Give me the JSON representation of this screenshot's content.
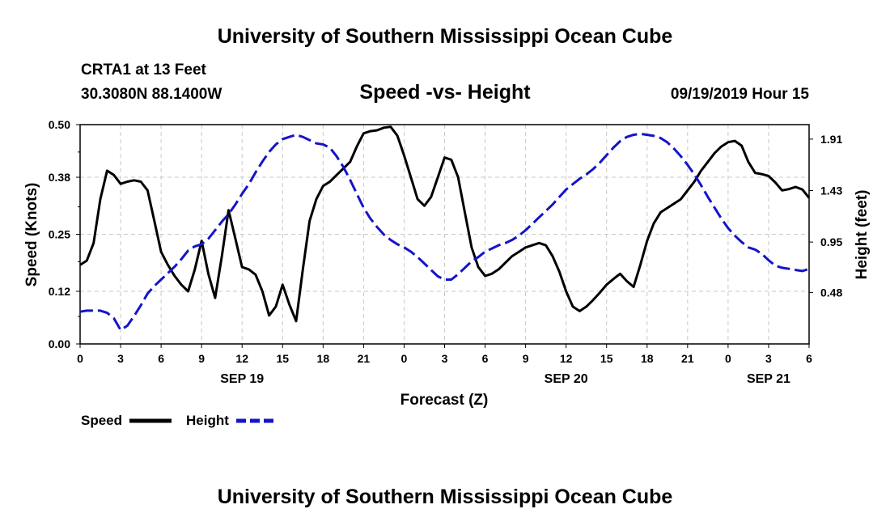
{
  "header": {
    "title": "University of Southern Mississippi Ocean Cube",
    "station": "CRTA1 at 13 Feet",
    "coords": "30.3080N 88.1400W",
    "subtitle": "Speed -vs- Height",
    "datetime": "09/19/2019 Hour 15"
  },
  "footer": {
    "title": "University of Southern Mississippi Ocean Cube"
  },
  "colors": {
    "speed": "#000000",
    "height": "#1414c8",
    "grid": "#c8c8c8"
  },
  "chart_data": {
    "type": "line",
    "title": "Speed -vs- Height",
    "xlabel": "Forecast (Z)",
    "ylabel_left": "Speed (Knots)",
    "ylabel_right": "Height (feet)",
    "x_range_hours": [
      0,
      54
    ],
    "x_ticks": [
      {
        "h": 0,
        "label": "0"
      },
      {
        "h": 3,
        "label": "3"
      },
      {
        "h": 6,
        "label": "6"
      },
      {
        "h": 9,
        "label": "9"
      },
      {
        "h": 12,
        "label": "12"
      },
      {
        "h": 15,
        "label": "15"
      },
      {
        "h": 18,
        "label": "18"
      },
      {
        "h": 21,
        "label": "21"
      },
      {
        "h": 24,
        "label": "0"
      },
      {
        "h": 27,
        "label": "3"
      },
      {
        "h": 30,
        "label": "6"
      },
      {
        "h": 33,
        "label": "9"
      },
      {
        "h": 36,
        "label": "12"
      },
      {
        "h": 39,
        "label": "15"
      },
      {
        "h": 42,
        "label": "18"
      },
      {
        "h": 45,
        "label": "21"
      },
      {
        "h": 48,
        "label": "0"
      },
      {
        "h": 51,
        "label": "3"
      },
      {
        "h": 54,
        "label": "6"
      }
    ],
    "date_labels": [
      {
        "h": 12,
        "label": "SEP 19"
      },
      {
        "h": 36,
        "label": "SEP 20"
      },
      {
        "h": 51,
        "label": "SEP 21"
      }
    ],
    "y_left": {
      "min": 0,
      "max": 0.5,
      "ticks": [
        "0.00",
        "0.12",
        "0.25",
        "0.38",
        "0.50"
      ]
    },
    "y_right": {
      "min": 0.0,
      "max": 2.045,
      "ticks": [
        "0.48",
        "0.95",
        "1.43",
        "1.91"
      ]
    },
    "series": [
      {
        "name": "Speed",
        "axis": "left",
        "style": "solid",
        "x": [
          0,
          0.5,
          1,
          1.5,
          2,
          2.5,
          3,
          3.5,
          4,
          4.5,
          5,
          5.5,
          6,
          6.5,
          7,
          7.5,
          8,
          8.5,
          9,
          9.5,
          10,
          10.5,
          11,
          11.5,
          12,
          12.5,
          13,
          13.5,
          14,
          14.5,
          15,
          15.5,
          16,
          16.5,
          17,
          17.5,
          18,
          18.5,
          19,
          19.5,
          20,
          20.5,
          21,
          21.5,
          22,
          22.5,
          23,
          23.5,
          24,
          24.5,
          25,
          25.5,
          26,
          26.5,
          27,
          27.5,
          28,
          28.5,
          29,
          29.5,
          30,
          30.5,
          31,
          31.5,
          32,
          32.5,
          33,
          33.5,
          34,
          34.5,
          35,
          35.5,
          36,
          36.5,
          37,
          37.5,
          38,
          38.5,
          39,
          39.5,
          40,
          40.5,
          41,
          41.5,
          42,
          42.5,
          43,
          43.5,
          44,
          44.5,
          45,
          45.5,
          46,
          46.5,
          47,
          47.5,
          48,
          48.5,
          49,
          49.5,
          50,
          50.5,
          51,
          51.5,
          52,
          52.5,
          53,
          53.5,
          54
        ],
        "values": [
          0.18,
          0.19,
          0.23,
          0.33,
          0.395,
          0.385,
          0.365,
          0.37,
          0.373,
          0.37,
          0.35,
          0.28,
          0.21,
          0.18,
          0.155,
          0.135,
          0.12,
          0.17,
          0.235,
          0.16,
          0.105,
          0.2,
          0.305,
          0.24,
          0.175,
          0.17,
          0.158,
          0.12,
          0.065,
          0.085,
          0.135,
          0.09,
          0.052,
          0.17,
          0.28,
          0.33,
          0.36,
          0.37,
          0.385,
          0.4,
          0.415,
          0.45,
          0.48,
          0.485,
          0.487,
          0.493,
          0.495,
          0.475,
          0.43,
          0.38,
          0.33,
          0.315,
          0.335,
          0.38,
          0.425,
          0.42,
          0.38,
          0.3,
          0.22,
          0.175,
          0.155,
          0.16,
          0.17,
          0.185,
          0.2,
          0.21,
          0.22,
          0.225,
          0.23,
          0.225,
          0.2,
          0.165,
          0.12,
          0.085,
          0.075,
          0.085,
          0.1,
          0.117,
          0.135,
          0.148,
          0.16,
          0.143,
          0.13,
          0.18,
          0.235,
          0.275,
          0.3,
          0.31,
          0.32,
          0.33,
          0.35,
          0.37,
          0.395,
          0.415,
          0.435,
          0.45,
          0.46,
          0.463,
          0.452,
          0.415,
          0.39,
          0.387,
          0.383,
          0.368,
          0.35,
          0.353,
          0.358,
          0.352,
          0.333
        ]
      },
      {
        "name": "Height",
        "axis": "right",
        "style": "dashed",
        "x": [
          0,
          0.5,
          1,
          1.5,
          2,
          2.5,
          3,
          3.5,
          4,
          4.5,
          5,
          5.5,
          6,
          6.5,
          7,
          7.5,
          8,
          8.5,
          9,
          9.5,
          10,
          10.5,
          11,
          11.5,
          12,
          12.5,
          13,
          13.5,
          14,
          14.5,
          15,
          15.5,
          16,
          16.5,
          17,
          17.5,
          18,
          18.5,
          19,
          19.5,
          20,
          20.5,
          21,
          21.5,
          22,
          22.5,
          23,
          23.5,
          24,
          24.5,
          25,
          25.5,
          26,
          26.5,
          27,
          27.5,
          28,
          28.5,
          29,
          29.5,
          30,
          30.5,
          31,
          31.5,
          32,
          32.5,
          33,
          33.5,
          34,
          34.5,
          35,
          35.5,
          36,
          36.5,
          37,
          37.5,
          38,
          38.5,
          39,
          39.5,
          40,
          40.5,
          41,
          41.5,
          42,
          42.5,
          43,
          43.5,
          44,
          44.5,
          45,
          45.5,
          46,
          46.5,
          47,
          47.5,
          48,
          48.5,
          49,
          49.5,
          50,
          50.5,
          51,
          51.5,
          52,
          52.5,
          53,
          53.5,
          54
        ],
        "values": [
          0.3,
          0.31,
          0.31,
          0.31,
          0.29,
          0.24,
          0.13,
          0.17,
          0.26,
          0.36,
          0.47,
          0.54,
          0.6,
          0.66,
          0.72,
          0.79,
          0.87,
          0.91,
          0.93,
          0.98,
          1.06,
          1.14,
          1.21,
          1.3,
          1.4,
          1.49,
          1.6,
          1.7,
          1.79,
          1.86,
          1.91,
          1.93,
          1.95,
          1.93,
          1.9,
          1.87,
          1.86,
          1.83,
          1.75,
          1.65,
          1.53,
          1.4,
          1.27,
          1.17,
          1.09,
          1.02,
          0.97,
          0.93,
          0.9,
          0.86,
          0.81,
          0.75,
          0.69,
          0.63,
          0.6,
          0.6,
          0.65,
          0.71,
          0.77,
          0.81,
          0.86,
          0.89,
          0.92,
          0.94,
          0.97,
          1.01,
          1.06,
          1.12,
          1.18,
          1.24,
          1.3,
          1.37,
          1.44,
          1.49,
          1.54,
          1.58,
          1.63,
          1.69,
          1.76,
          1.83,
          1.89,
          1.93,
          1.95,
          1.96,
          1.95,
          1.94,
          1.92,
          1.88,
          1.82,
          1.75,
          1.67,
          1.58,
          1.48,
          1.37,
          1.27,
          1.17,
          1.08,
          1.01,
          0.95,
          0.9,
          0.88,
          0.84,
          0.78,
          0.73,
          0.71,
          0.7,
          0.69,
          0.68,
          0.7
        ]
      }
    ],
    "legend": [
      {
        "label": "Speed",
        "style": "solid"
      },
      {
        "label": "Height",
        "style": "dashed"
      }
    ]
  }
}
